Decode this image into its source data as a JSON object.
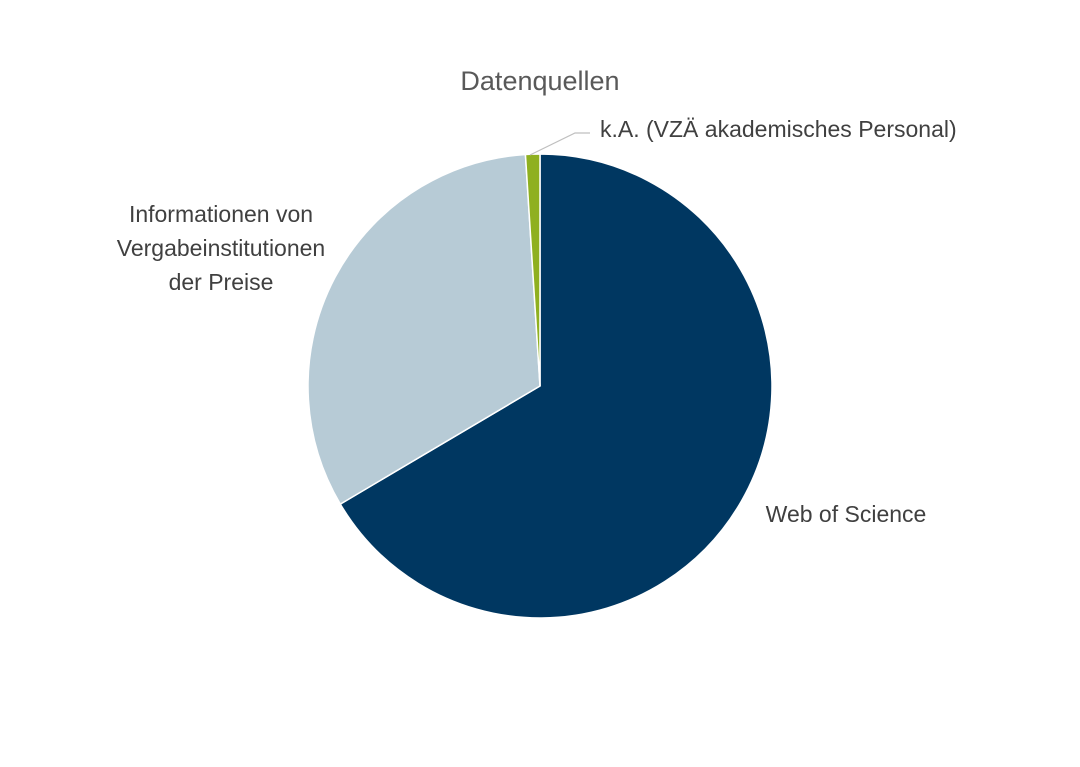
{
  "chart_data": {
    "type": "pie",
    "title": "Datenquellen",
    "slices": [
      {
        "label": "Web of Science",
        "value": 66.5,
        "color": "#003761"
      },
      {
        "label": "Informationen von Vergabeinstitutionen der Preise",
        "value": 32.5,
        "color": "#b7cbd6"
      },
      {
        "label": "k.A. (VZÄ akademisches Personal)",
        "value": 1.0,
        "color": "#8fb020"
      }
    ],
    "legend": "none",
    "data_labels": "category names"
  }
}
